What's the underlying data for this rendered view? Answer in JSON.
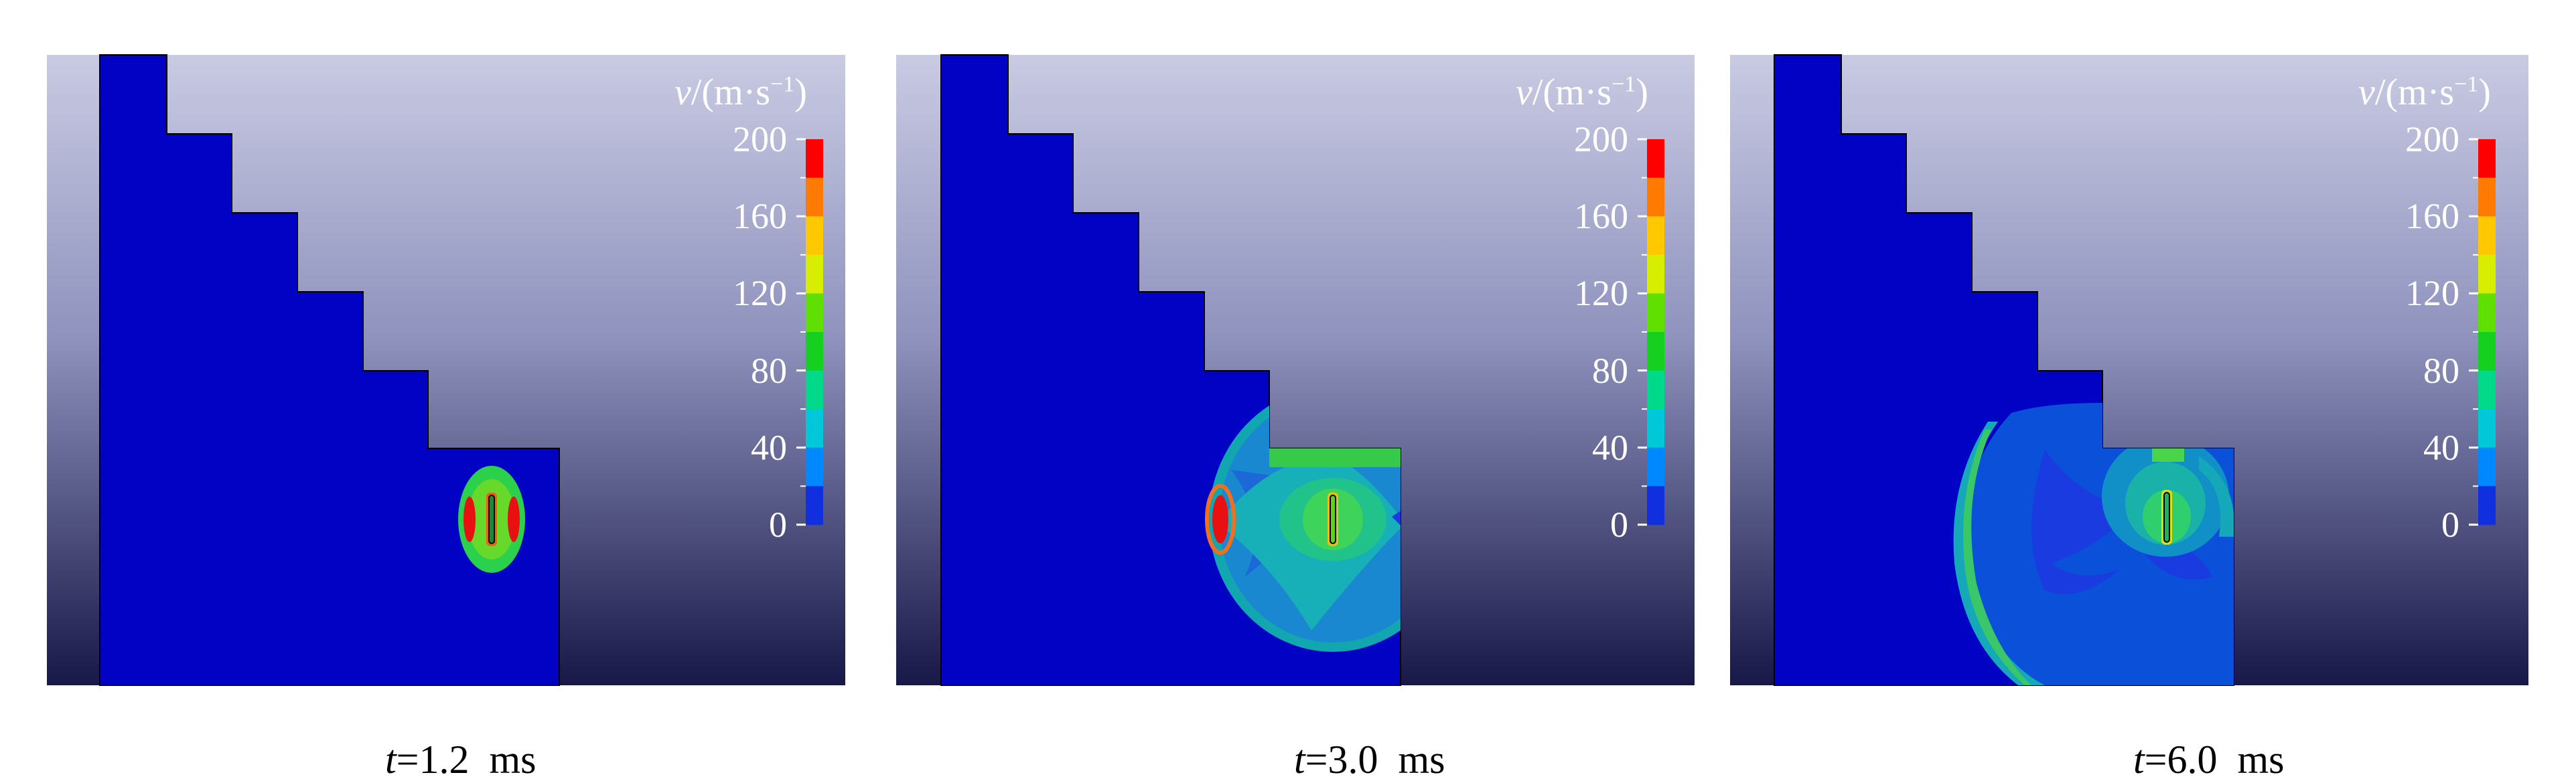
{
  "figure": {
    "colorbar": {
      "var": "v",
      "unit_open": "/(m",
      "unit_dot": "·",
      "unit_s": "s",
      "unit_exp": "−1",
      "unit_close": ")",
      "ticks": [
        "200",
        "160",
        "120",
        "80",
        "40",
        "0"
      ],
      "colors": [
        "#ff0000",
        "#ff7a00",
        "#ffc800",
        "#d8ee00",
        "#5fe000",
        "#15d01e",
        "#00d88a",
        "#00c8d8",
        "#0088ff",
        "#1030e0"
      ]
    },
    "background_top": "#c9cbe3",
    "background_bottom": "#181848",
    "body_color": "#0202c4"
  },
  "panels": [
    {
      "caption_var": "t",
      "caption_val": "=1.2  ms"
    },
    {
      "caption_var": "t",
      "caption_val": "=3.0  ms"
    },
    {
      "caption_var": "t",
      "caption_val": "=6.0  ms"
    }
  ]
}
